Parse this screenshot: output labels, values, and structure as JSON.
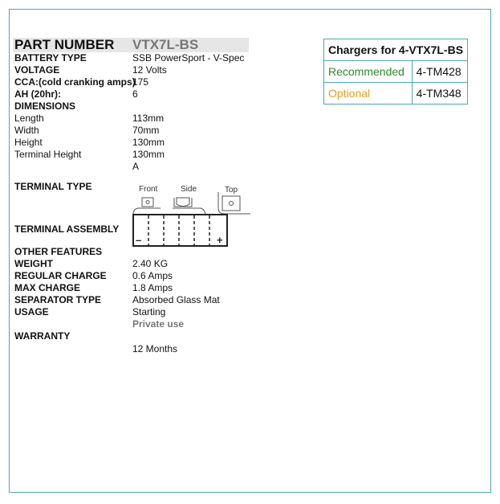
{
  "part": {
    "label": "PART NUMBER",
    "value": "VTX7L-BS"
  },
  "specs": [
    {
      "label": "BATTERY TYPE",
      "value": "SSB PowerSport - V-Spec",
      "bold": true
    },
    {
      "label": "VOLTAGE",
      "value": "12 Volts",
      "bold": true
    },
    {
      "label": "CCA:(cold cranking amps)",
      "value": "175",
      "bold": true
    },
    {
      "label": "AH (20hr):",
      "value": "6",
      "bold": true
    },
    {
      "label": "DIMENSIONS",
      "value": "",
      "bold": true
    },
    {
      "label": "Length",
      "value": "113mm"
    },
    {
      "label": "Width",
      "value": "70mm"
    },
    {
      "label": "Height",
      "value": "130mm"
    },
    {
      "label": "Terminal Height",
      "value": "130mm"
    },
    {
      "label": "",
      "value": "A"
    }
  ],
  "terminal_type": "TERMINAL TYPE",
  "terminal_assembly": "TERMINAL ASSEMBLY",
  "diagram": {
    "front": "Front",
    "side": "Side",
    "top": "Top",
    "minus": "–",
    "plus": "+"
  },
  "features": [
    {
      "label": "OTHER FEATURES",
      "value": ""
    },
    {
      "label": "WEIGHT",
      "value": "2.40 KG"
    },
    {
      "label": "REGULAR CHARGE",
      "value": "0.6 Amps"
    },
    {
      "label": "MAX CHARGE",
      "value": "1.8 Amps"
    },
    {
      "label": "SEPARATOR TYPE",
      "value": "Absorbed Glass Mat"
    },
    {
      "label": "USAGE",
      "value": "Starting"
    },
    {
      "label": "",
      "value": "Private use"
    },
    {
      "label": "WARRANTY",
      "value": ""
    },
    {
      "label": "",
      "value": "12 Months"
    }
  ],
  "chargers": {
    "title": "Chargers for 4-VTX7L-BS",
    "rows": [
      {
        "type": "Recommended",
        "model": "4-TM428",
        "color": "#2e8a2e"
      },
      {
        "type": "Optional",
        "model": "4-TM348",
        "color": "#e8a020"
      }
    ]
  }
}
